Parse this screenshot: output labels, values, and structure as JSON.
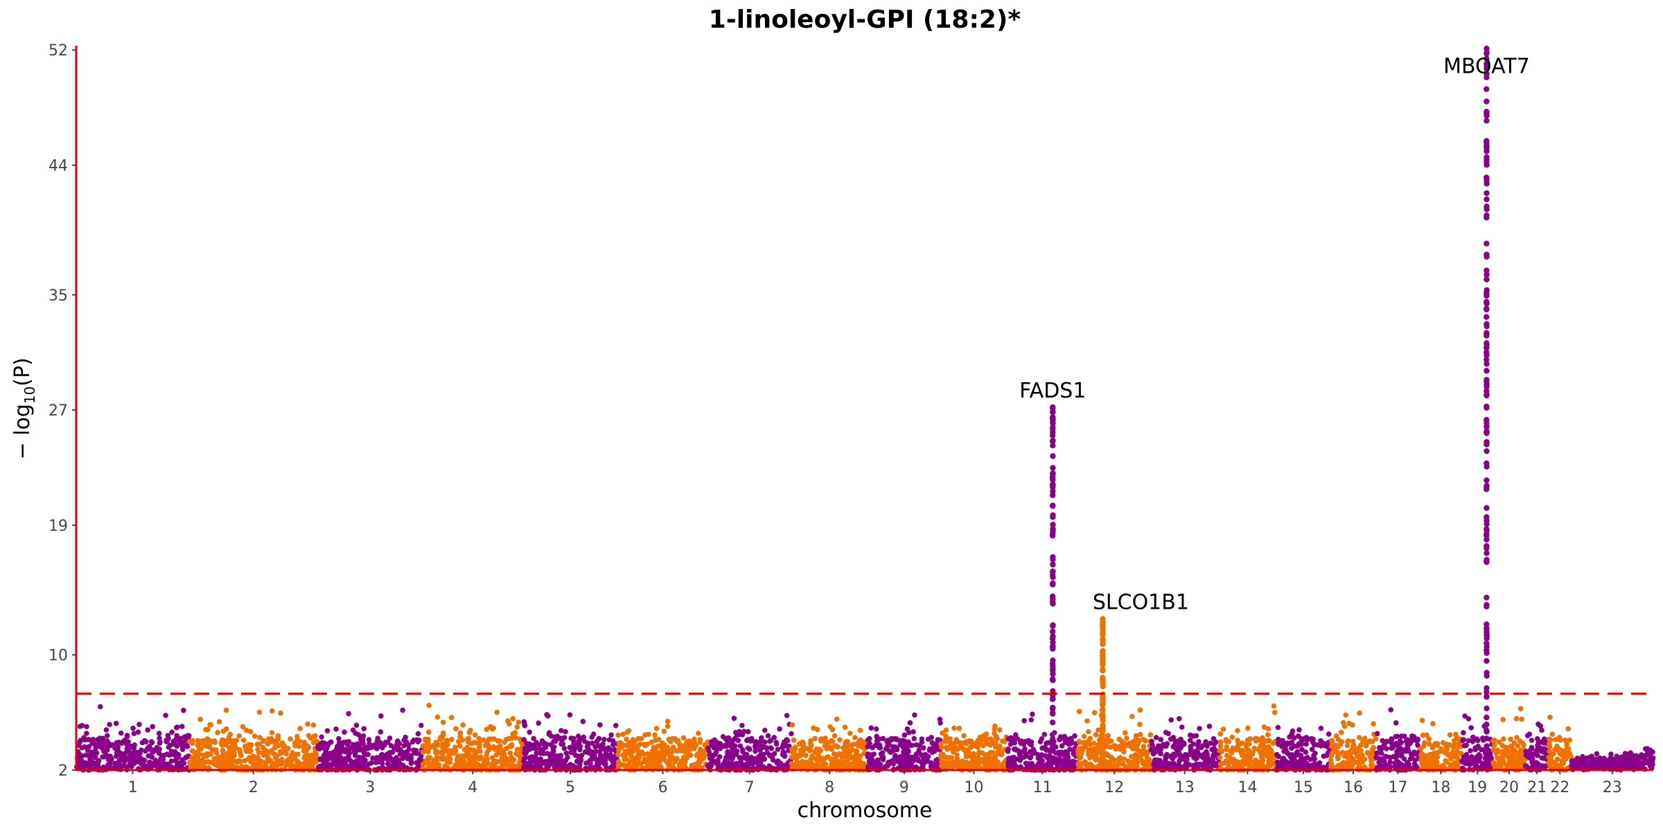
{
  "chart_data": {
    "type": "scatter",
    "title": "1-linoleoyl-GPI (18:2)*",
    "xlabel": "chromosome",
    "ylabel": "− log₁₀(P)",
    "ylabel_parts": {
      "pre": "− log",
      "sub": "10",
      "post": "(P)"
    },
    "ylim": [
      2,
      52.3
    ],
    "yticks": [
      2,
      10,
      19,
      27,
      35,
      44,
      52
    ],
    "significance_threshold": 7.3,
    "colors": {
      "odd": "#8B008B",
      "even": "#F07000",
      "axis": "#E00000",
      "threshold": "#E00000"
    },
    "chromosomes": [
      {
        "label": "1",
        "start": 0,
        "end": 215
      },
      {
        "label": "2",
        "start": 215,
        "end": 459
      },
      {
        "label": "3",
        "start": 459,
        "end": 659
      },
      {
        "label": "4",
        "start": 659,
        "end": 849
      },
      {
        "label": "5",
        "start": 849,
        "end": 1030
      },
      {
        "label": "6",
        "start": 1030,
        "end": 1201
      },
      {
        "label": "7",
        "start": 1201,
        "end": 1360
      },
      {
        "label": "8",
        "start": 1360,
        "end": 1505
      },
      {
        "label": "9",
        "start": 1505,
        "end": 1644
      },
      {
        "label": "10",
        "start": 1644,
        "end": 1770
      },
      {
        "label": "11",
        "start": 1770,
        "end": 1905
      },
      {
        "label": "12",
        "start": 1905,
        "end": 2043
      },
      {
        "label": "13",
        "start": 2043,
        "end": 2173
      },
      {
        "label": "14",
        "start": 2173,
        "end": 2282
      },
      {
        "label": "15",
        "start": 2282,
        "end": 2385
      },
      {
        "label": "16",
        "start": 2385,
        "end": 2472
      },
      {
        "label": "17",
        "start": 2472,
        "end": 2555
      },
      {
        "label": "18",
        "start": 2555,
        "end": 2635
      },
      {
        "label": "19",
        "start": 2635,
        "end": 2694
      },
      {
        "label": "20",
        "start": 2694,
        "end": 2756
      },
      {
        "label": "21",
        "start": 2756,
        "end": 2800
      },
      {
        "label": "22",
        "start": 2800,
        "end": 2843
      },
      {
        "label": "23",
        "start": 2843,
        "end": 2999
      }
    ],
    "peaks": [
      {
        "label": "FADS1",
        "chrom": "11",
        "x": 1857,
        "ymax": 27.2
      },
      {
        "label": "SLCO1B1",
        "chrom": "12",
        "x": 1952,
        "ymax": 12.5
      },
      {
        "label": "MBOAT7",
        "chrom": "19",
        "x": 2682,
        "ymax": 52.1
      }
    ]
  }
}
